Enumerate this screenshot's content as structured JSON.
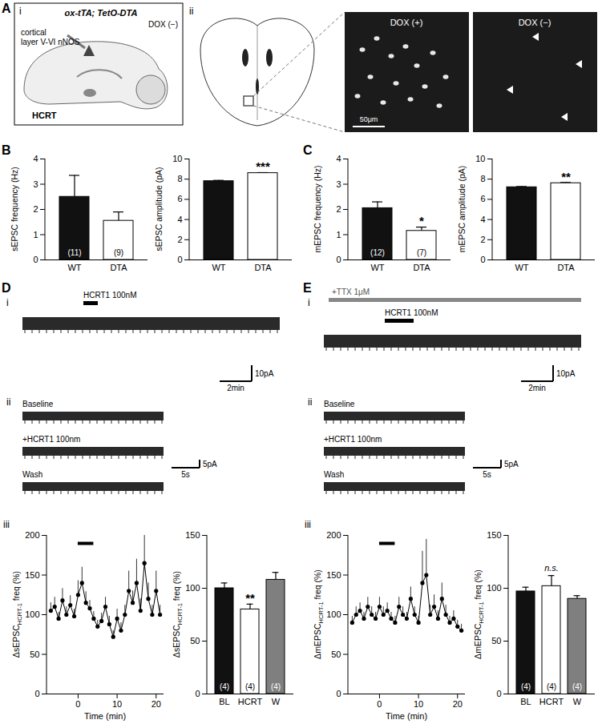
{
  "figure": {
    "A": {
      "letter": "A",
      "i": {
        "sublabel": "i",
        "genotype": "ox-tTA; TetO-DTA",
        "condition": "DOX (−)",
        "target": [
          "cortical",
          "layer V-VI nNOS"
        ],
        "region": "HCRT"
      },
      "ii": {
        "sublabel": "ii",
        "images": [
          "DOX (+)",
          "DOX (−)"
        ],
        "scale_bar": "50μm"
      }
    },
    "D": {
      "letter": "D",
      "i": {
        "sublabel": "i",
        "drug": "HCRT1 100nM",
        "scale_time": "2min",
        "scale_current": "10pA"
      },
      "ii": {
        "sublabel": "ii",
        "conditions": [
          "Baseline",
          "+HCRT1 100nm",
          "Wash"
        ],
        "scale_time": "5s",
        "scale_current": "5pA"
      },
      "iii": {
        "sublabel": "iii"
      }
    },
    "E": {
      "letter": "E",
      "i": {
        "sublabel": "i",
        "pretreatment": "+TTX 1μM",
        "drug": "HCRT1 100nM",
        "scale_time": "2min",
        "scale_current": "10pA"
      },
      "ii": {
        "sublabel": "ii",
        "conditions": [
          "Baseline",
          "+HCRT1 100nm",
          "Wash"
        ],
        "scale_time": "5s",
        "scale_current": "5pA"
      },
      "iii": {
        "sublabel": "iii"
      }
    }
  },
  "chart_data": [
    {
      "panel": "B",
      "type": "bar",
      "categories": [
        "WT",
        "DTA"
      ],
      "values": [
        2.5,
        1.55
      ],
      "errors": [
        0.85,
        0.35
      ],
      "colors": [
        "#111111",
        "#ffffff"
      ],
      "n_labels": [
        "(11)",
        "(9)"
      ],
      "significance": [
        null,
        null
      ],
      "ylabel": "sEPSC frequency (Hz)",
      "ylim": [
        0,
        4
      ],
      "yticks": [
        0,
        1,
        2,
        3,
        4
      ]
    },
    {
      "type": "bar",
      "categories": [
        "WT",
        "DTA"
      ],
      "values": [
        7.8,
        8.6
      ],
      "errors": [
        0.08,
        0.05
      ],
      "colors": [
        "#111111",
        "#ffffff"
      ],
      "n_labels": [
        null,
        null
      ],
      "significance": [
        null,
        "***"
      ],
      "ylabel": "sEPSC amplitude (pA)",
      "ylim": [
        0,
        10
      ],
      "yticks": [
        0,
        2,
        4,
        6,
        8,
        10
      ]
    },
    {
      "panel": "C",
      "type": "bar",
      "categories": [
        "WT",
        "DTA"
      ],
      "values": [
        2.05,
        1.15
      ],
      "errors": [
        0.25,
        0.15
      ],
      "colors": [
        "#111111",
        "#ffffff"
      ],
      "n_labels": [
        "(12)",
        "(7)"
      ],
      "significance": [
        null,
        "*"
      ],
      "ylabel": "mEPSC frequency (Hz)",
      "ylim": [
        0,
        4
      ],
      "yticks": [
        0,
        1,
        2,
        3,
        4
      ]
    },
    {
      "type": "bar",
      "categories": [
        "WT",
        "DTA"
      ],
      "values": [
        7.2,
        7.6
      ],
      "errors": [
        0.07,
        0.07
      ],
      "colors": [
        "#111111",
        "#ffffff"
      ],
      "n_labels": [
        null,
        null
      ],
      "significance": [
        null,
        "**"
      ],
      "ylabel": "mEPSC amplitude (pA)",
      "ylim": [
        0,
        10
      ],
      "yticks": [
        0,
        2,
        4,
        6,
        8,
        10
      ]
    },
    {
      "type": "line",
      "x": [
        -7,
        -6,
        -5,
        -4,
        -3,
        -2,
        -1,
        0,
        1,
        2,
        3,
        4,
        5,
        6,
        7,
        8,
        9,
        10,
        11,
        12,
        13,
        14,
        15,
        16,
        17,
        18,
        19,
        20,
        21
      ],
      "values": [
        105,
        110,
        95,
        118,
        100,
        112,
        98,
        125,
        140,
        115,
        108,
        95,
        85,
        92,
        110,
        88,
        72,
        95,
        80,
        100,
        130,
        115,
        140,
        105,
        165,
        120,
        100,
        130,
        100
      ],
      "errors": [
        10,
        12,
        8,
        15,
        10,
        12,
        9,
        18,
        20,
        14,
        10,
        9,
        8,
        10,
        12,
        10,
        8,
        12,
        10,
        12,
        25,
        15,
        30,
        15,
        35,
        20,
        12,
        25,
        12
      ],
      "application": [
        0,
        4
      ],
      "color": "#000000",
      "marker": "circle",
      "xlabel": "Time (min)",
      "ylabel": {
        "main": "ΔsEPSC",
        "sub": "HCRT-1",
        "rest": " freq (%)"
      },
      "xlim": [
        -8,
        22
      ],
      "xticks": [
        0,
        10,
        20
      ],
      "ylim": [
        0,
        200
      ],
      "yticks": [
        0,
        50,
        100,
        150,
        200
      ]
    },
    {
      "type": "bar",
      "categories": [
        "BL",
        "HCRT",
        "W"
      ],
      "values": [
        100,
        80,
        108
      ],
      "errors": [
        5,
        5,
        7
      ],
      "colors": [
        "#111111",
        "#ffffff",
        "#7f7f7f"
      ],
      "n_labels": [
        "(4)",
        "(4)",
        "(4)"
      ],
      "significance": [
        null,
        "**",
        null
      ],
      "ylabel": {
        "main": "ΔsEPSC",
        "sub": "HCRT-1",
        "rest": " freq (%)"
      },
      "ylim": [
        0,
        150
      ],
      "yticks": [
        0,
        50,
        100,
        150
      ]
    },
    {
      "type": "line",
      "x": [
        -7,
        -6,
        -5,
        -4,
        -3,
        -2,
        -1,
        0,
        1,
        2,
        3,
        4,
        5,
        6,
        7,
        8,
        9,
        10,
        11,
        12,
        13,
        14,
        15,
        16,
        17,
        18,
        19,
        20,
        21
      ],
      "values": [
        90,
        100,
        105,
        95,
        110,
        100,
        95,
        110,
        100,
        105,
        95,
        90,
        110,
        100,
        95,
        120,
        100,
        90,
        140,
        150,
        100,
        110,
        95,
        120,
        100,
        90,
        95,
        85,
        80
      ],
      "errors": [
        8,
        10,
        10,
        8,
        12,
        10,
        8,
        12,
        10,
        10,
        8,
        8,
        12,
        10,
        8,
        15,
        10,
        8,
        40,
        45,
        12,
        15,
        10,
        20,
        12,
        8,
        10,
        8,
        8
      ],
      "application": [
        0,
        4
      ],
      "color": "#000000",
      "marker": "circle",
      "xlabel": "Time (min)",
      "ylabel": {
        "main": "ΔmEPSC",
        "sub": "HCRT-1",
        "rest": " freq (%)"
      },
      "xlim": [
        -8,
        22
      ],
      "xticks": [
        0,
        10,
        20
      ],
      "ylim": [
        0,
        200
      ],
      "yticks": [
        0,
        50,
        100,
        150,
        200
      ]
    },
    {
      "type": "bar",
      "categories": [
        "BL",
        "HCRT",
        "W"
      ],
      "values": [
        97,
        102,
        90
      ],
      "errors": [
        4,
        10,
        3
      ],
      "colors": [
        "#111111",
        "#ffffff",
        "#7f7f7f"
      ],
      "n_labels": [
        "(4)",
        "(4)",
        "(4)"
      ],
      "significance": [
        null,
        "n.s.",
        null
      ],
      "ylabel": {
        "main": "ΔmEPSC",
        "sub": "HCRT-1",
        "rest": " freq (%)"
      },
      "ylim": [
        0,
        150
      ],
      "yticks": [
        0,
        50,
        100,
        150
      ]
    }
  ]
}
